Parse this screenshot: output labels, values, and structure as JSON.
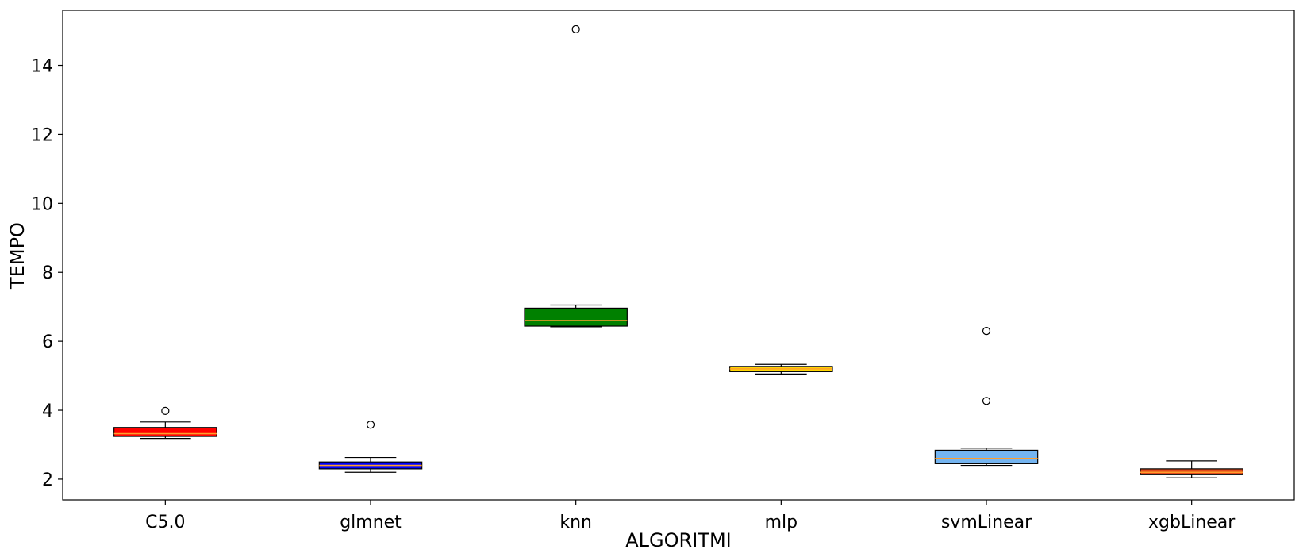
{
  "chart_data": {
    "type": "boxplot",
    "title": "",
    "xlabel": "ALGORITMI",
    "ylabel": "TEMPO",
    "ylim": [
      1.4,
      15.6
    ],
    "yticks": [
      2,
      4,
      6,
      8,
      10,
      12,
      14
    ],
    "grid": false,
    "categories": [
      "C5.0",
      "glmnet",
      "knn",
      "mlp",
      "svmLinear",
      "xgbLinear"
    ],
    "boxes": [
      {
        "category": "C5.0",
        "color": "#ff0000",
        "median_color": "#ff9e2c",
        "whisker_low": 3.18,
        "q1": 3.24,
        "median": 3.32,
        "q3": 3.5,
        "whisker_high": 3.66,
        "outliers": [
          3.98
        ]
      },
      {
        "category": "glmnet",
        "color": "#0000ff",
        "median_color": "#ff9e2c",
        "whisker_low": 2.2,
        "q1": 2.3,
        "median": 2.4,
        "q3": 2.5,
        "whisker_high": 2.63,
        "outliers": [
          3.58
        ]
      },
      {
        "category": "knn",
        "color": "#008000",
        "median_color": "#ff9e2c",
        "whisker_low": 6.42,
        "q1": 6.44,
        "median": 6.6,
        "q3": 6.96,
        "whisker_high": 7.05,
        "outliers": [
          15.05
        ]
      },
      {
        "category": "mlp",
        "color": "#ffd700",
        "median_color": "#ff9e2c",
        "whisker_low": 5.05,
        "q1": 5.12,
        "median": 5.2,
        "q3": 5.27,
        "whisker_high": 5.33,
        "outliers": []
      },
      {
        "category": "svmLinear",
        "color": "#74b4f0",
        "median_color": "#ff9e2c",
        "whisker_low": 2.4,
        "q1": 2.45,
        "median": 2.6,
        "q3": 2.84,
        "whisker_high": 2.9,
        "outliers": [
          4.27,
          6.3
        ]
      },
      {
        "category": "xgbLinear",
        "color": "#e24a1b",
        "median_color": "#ff9e2c",
        "whisker_low": 2.04,
        "q1": 2.13,
        "median": 2.2,
        "q3": 2.3,
        "whisker_high": 2.53,
        "outliers": []
      }
    ]
  }
}
